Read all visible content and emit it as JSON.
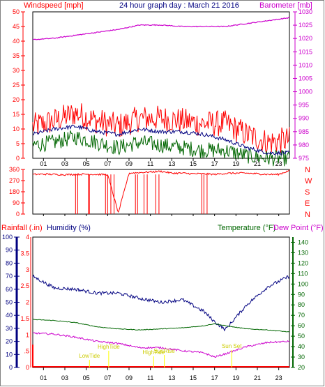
{
  "header": {
    "left_label": "Windspeed [mph]",
    "title": "24 hour graph day : March 21 2016",
    "right_label": "Barometer [mb]"
  },
  "colors": {
    "red": "#ff0000",
    "magenta": "#cc00cc",
    "navy": "#000080",
    "green": "#006600",
    "yellow": "#ffff00",
    "black": "#000000"
  },
  "x_axis": {
    "ticks": [
      "01",
      "03",
      "05",
      "07",
      "09",
      "11",
      "13",
      "15",
      "17",
      "19",
      "21",
      "23"
    ],
    "range_hours": [
      0,
      24
    ]
  },
  "chart_data": [
    {
      "type": "line",
      "title": "24 hour graph day : March 21 2016",
      "xlabel": "",
      "ylabel": "Windspeed [mph]",
      "y2label": "Barometer [mb]",
      "ylim": [
        0,
        50
      ],
      "y2lim": [
        975,
        1030
      ],
      "yticks": [
        0,
        5,
        10,
        15,
        20,
        25,
        30,
        35,
        40,
        45,
        50
      ],
      "y2ticks": [
        975,
        980,
        985,
        990,
        995,
        1000,
        1005,
        1010,
        1015,
        1020,
        1025,
        1030
      ],
      "x": [
        0,
        2,
        4,
        6,
        8,
        10,
        12,
        14,
        16,
        18,
        20,
        22,
        24
      ],
      "series": [
        {
          "name": "Windspeed [mph]",
          "axis": "y2",
          "color": "#ff0000",
          "values": [
            987,
            989,
            992,
            989,
            987,
            990,
            990,
            989,
            988,
            988,
            984,
            981,
            982
          ]
        },
        {
          "name": "Barometer [mb]",
          "axis": "y",
          "color": "#cc00cc",
          "values": [
            40.5,
            41,
            42,
            43,
            44,
            45.5,
            45.5,
            45,
            45,
            45,
            46,
            47,
            48
          ]
        },
        {
          "axis": "y2",
          "color": "#000080",
          "values": [
            984,
            986,
            987,
            985,
            984,
            986,
            985,
            985,
            984,
            982,
            979,
            977,
            977
          ]
        },
        {
          "axis": "y2",
          "color": "#006600",
          "values": [
            980,
            981,
            983,
            981,
            979,
            981,
            980,
            979,
            978,
            978,
            976,
            975,
            975
          ]
        }
      ]
    },
    {
      "type": "line",
      "ylabel": "",
      "ylim": [
        0,
        360
      ],
      "yticks": [
        0,
        90,
        180,
        270,
        360
      ],
      "right_labels": [
        "N",
        "W",
        "S",
        "E",
        "N"
      ],
      "x": [
        0,
        1,
        2,
        3,
        4,
        5,
        6,
        7,
        8,
        9,
        10,
        11,
        12,
        13,
        14,
        15,
        16,
        17,
        18,
        19,
        20,
        21,
        22,
        23,
        24
      ],
      "values": [
        320,
        322,
        320,
        318,
        320,
        322,
        320,
        318,
        10,
        330,
        335,
        340,
        345,
        330,
        330,
        325,
        325,
        320,
        328,
        330,
        330,
        325,
        320,
        320,
        352
      ]
    },
    {
      "type": "line",
      "y_labels": {
        "rainfall": "Rainfall (.in)",
        "humidity": "Humidity (%)",
        "temperature": "Temperature (°F)",
        "dew_point": "Dew Point (°F)"
      },
      "rain_ylim": [
        0,
        4
      ],
      "rain_ticks": [
        "0",
        ".5",
        "1",
        "1.5",
        "2",
        "2.5",
        "3",
        "3.5",
        "4"
      ],
      "humidity_ylim": [
        0,
        100
      ],
      "humidity_ticks": [
        0,
        10,
        20,
        30,
        40,
        50,
        60,
        70,
        80,
        90,
        100
      ],
      "temp_ylim": [
        20,
        145
      ],
      "temp_ticks": [
        20,
        30,
        40,
        50,
        60,
        70,
        80,
        90,
        100,
        110,
        120,
        130,
        140
      ],
      "x": [
        0,
        2,
        4,
        6,
        8,
        10,
        12,
        14,
        16,
        17,
        18,
        20,
        22,
        24
      ],
      "series": [
        {
          "name": "Humidity (%)",
          "scale": "humidity",
          "color": "#000080",
          "values": [
            70,
            61,
            60,
            57,
            57,
            53,
            50,
            52,
            43,
            35,
            29,
            48,
            62,
            70
          ]
        },
        {
          "name": "Temperature (°F)",
          "scale": "temperature",
          "color": "#006600",
          "values": [
            66,
            65,
            63,
            59,
            57,
            56,
            57,
            58,
            60,
            62,
            60,
            57,
            56,
            54
          ]
        },
        {
          "name": "Dew Point (°F)",
          "scale": "temperature",
          "color": "#cc00cc",
          "values": [
            53,
            52,
            49,
            45,
            43,
            39,
            39,
            36,
            34,
            30,
            33,
            40,
            44,
            45
          ]
        }
      ],
      "annotations": [
        {
          "label": "LowTide",
          "hour": 5.3
        },
        {
          "label": "HighTide",
          "hour": 7.1
        },
        {
          "label": "HighTide",
          "hour": 11.3
        },
        {
          "label": "SunRise",
          "hour": 12.3
        },
        {
          "label": "Sun Set",
          "hour": 18.6
        }
      ]
    }
  ]
}
